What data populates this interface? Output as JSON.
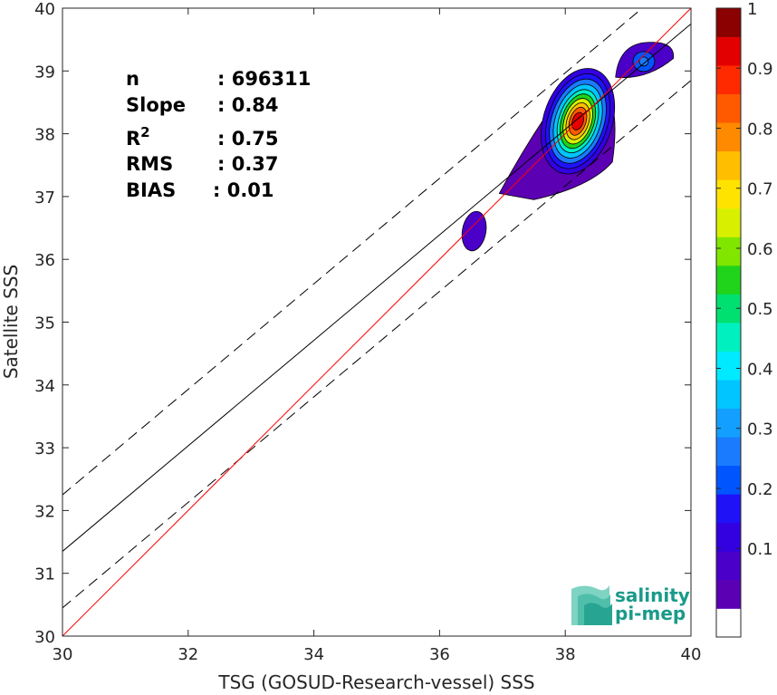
{
  "chart_data": {
    "type": "scatter",
    "subtype": "density-contour",
    "xlabel": "TSG (GOSUD-Research-vessel) SSS",
    "ylabel": "Satellite SSS",
    "xlim": [
      30,
      40
    ],
    "ylim": [
      30,
      40
    ],
    "xticks": [
      30,
      32,
      34,
      36,
      38,
      40
    ],
    "yticks": [
      30,
      31,
      32,
      33,
      34,
      35,
      36,
      37,
      38,
      39,
      40
    ],
    "grid": false,
    "stats": [
      {
        "label": "n",
        "value": ": 696311"
      },
      {
        "label": "Slope",
        "value": ": 0.84"
      },
      {
        "label": "R",
        "sup": "2",
        "value": ": 0.75"
      },
      {
        "label": "RMS",
        "value": ": 0.37"
      },
      {
        "label": "BIAS",
        "value": ": 0.01"
      }
    ],
    "lines": {
      "identity": {
        "slope": 1.0,
        "intercept": 0.0,
        "color": "#ff0000"
      },
      "regression": {
        "slope": 0.84,
        "intercept": 6.15,
        "color": "#000000"
      },
      "upper_bound": {
        "slope": 0.84,
        "intercept": 7.05,
        "style": "dashed"
      },
      "lower_bound": {
        "slope": 0.84,
        "intercept": 5.25,
        "style": "dashed"
      }
    },
    "density_peaks": [
      {
        "x": 38.2,
        "y": 38.2,
        "max_level": 1.0
      },
      {
        "x": 39.25,
        "y": 39.15,
        "max_level": 0.3
      },
      {
        "x": 36.55,
        "y": 36.45,
        "max_level": 0.1
      }
    ],
    "colorbar": {
      "ticks": [
        0.1,
        0.2,
        0.3,
        0.4,
        0.5,
        0.6,
        0.7,
        0.8,
        0.9,
        1
      ],
      "tick_labels": [
        "0.1",
        "0.2",
        "0.3",
        "0.4",
        "0.5",
        "0.6",
        "0.7",
        "0.8",
        "0.9",
        "1"
      ],
      "levels": [
        0,
        0.05,
        0.1,
        0.15,
        0.2,
        0.25,
        0.3,
        0.35,
        0.4,
        0.45,
        0.5,
        0.55,
        0.6,
        0.65,
        0.7,
        0.75,
        0.8,
        0.85,
        0.9,
        0.95,
        1.0
      ],
      "colors": [
        "#ffffff",
        "#5b00b3",
        "#4a00c8",
        "#3300e0",
        "#1f12f7",
        "#0055ff",
        "#1a7bff",
        "#139fff",
        "#00c5ff",
        "#00eaff",
        "#00f0c0",
        "#00e070",
        "#1fd41a",
        "#80e600",
        "#d8f000",
        "#ffe300",
        "#ffbf00",
        "#ff8a00",
        "#ff5a00",
        "#ff2a00",
        "#e30000",
        "#8b0000"
      ]
    }
  },
  "logo": {
    "line1": "salinity",
    "line2": "pi-mep"
  }
}
